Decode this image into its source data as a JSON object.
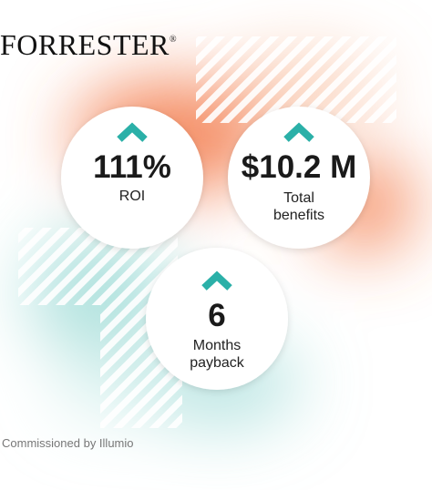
{
  "brand": {
    "name": "FORRESTER",
    "mark": "®"
  },
  "stats": [
    {
      "value": "111%",
      "label": "ROI"
    },
    {
      "value": "$10.2 M",
      "label": "Total benefits"
    },
    {
      "value": "6",
      "label": "Months payback"
    }
  ],
  "footer": "Commissioned by Illumio"
}
